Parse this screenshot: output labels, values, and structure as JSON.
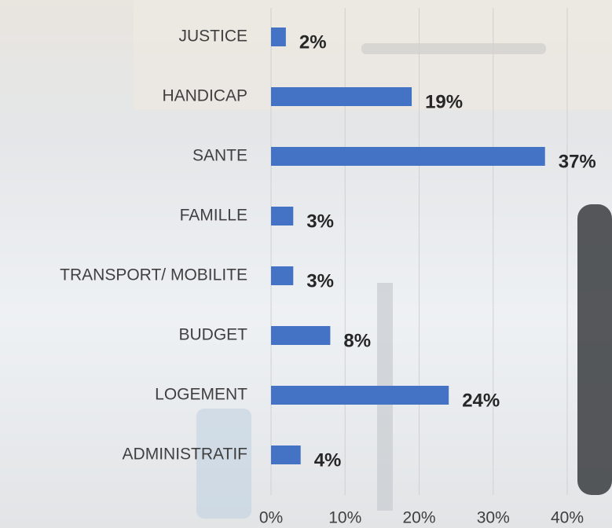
{
  "chart_data": {
    "type": "bar",
    "orientation": "horizontal",
    "categories": [
      "JUSTICE",
      "HANDICAP",
      "SANTE",
      "FAMILLE",
      "TRANSPORT/ MOBILITE",
      "BUDGET",
      "LOGEMENT",
      "ADMINISTRATIF"
    ],
    "values": [
      2,
      19,
      37,
      3,
      3,
      8,
      24,
      4
    ],
    "value_labels": [
      "2%",
      "19%",
      "37%",
      "3%",
      "3%",
      "8%",
      "24%",
      "4%"
    ],
    "color": "#4472c4",
    "xlim": [
      0,
      40
    ],
    "xticks": [
      {
        "value": 0,
        "label": "0%"
      },
      {
        "value": 10,
        "label": "10%"
      },
      {
        "value": 20,
        "label": "20%"
      },
      {
        "value": 30,
        "label": "30%"
      },
      {
        "value": 40,
        "label": "40%"
      }
    ],
    "grid": true
  }
}
